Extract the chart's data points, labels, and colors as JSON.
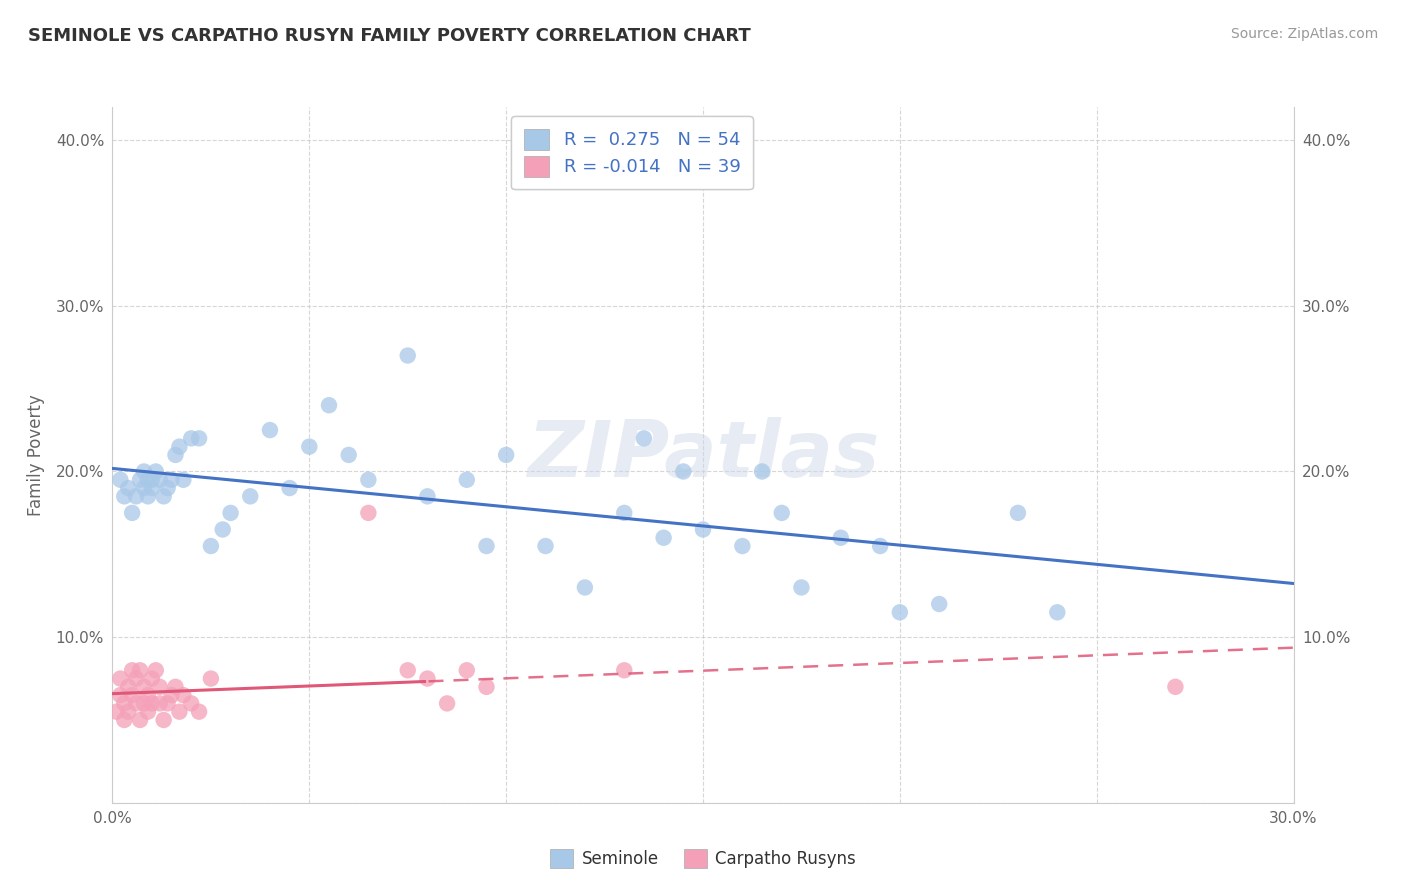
{
  "title": "SEMINOLE VS CARPATHO RUSYN FAMILY POVERTY CORRELATION CHART",
  "source_text": "Source: ZipAtlas.com",
  "ylabel_text": "Family Poverty",
  "x_min": 0.0,
  "x_max": 0.3,
  "y_min": 0.0,
  "y_max": 0.42,
  "seminole_R": 0.275,
  "seminole_N": 54,
  "carpatho_R": -0.014,
  "carpatho_N": 39,
  "seminole_color": "#a8c8e8",
  "seminole_line_color": "#4472c4",
  "carpatho_color": "#f4a0b8",
  "carpatho_line_color": "#e05878",
  "background_color": "#ffffff",
  "grid_color": "#cccccc",
  "watermark_text": "ZIPatlas",
  "legend_seminole": "Seminole",
  "legend_carpatho": "Carpatho Rusyns",
  "seminole_x": [
    0.002,
    0.003,
    0.004,
    0.005,
    0.006,
    0.007,
    0.008,
    0.008,
    0.009,
    0.009,
    0.01,
    0.01,
    0.011,
    0.012,
    0.013,
    0.014,
    0.015,
    0.016,
    0.017,
    0.018,
    0.02,
    0.022,
    0.025,
    0.028,
    0.03,
    0.035,
    0.04,
    0.045,
    0.05,
    0.055,
    0.06,
    0.065,
    0.075,
    0.08,
    0.09,
    0.095,
    0.1,
    0.11,
    0.12,
    0.13,
    0.135,
    0.14,
    0.145,
    0.15,
    0.16,
    0.165,
    0.17,
    0.175,
    0.185,
    0.195,
    0.2,
    0.21,
    0.23,
    0.24
  ],
  "seminole_y": [
    0.195,
    0.185,
    0.19,
    0.175,
    0.185,
    0.195,
    0.2,
    0.19,
    0.195,
    0.185,
    0.19,
    0.195,
    0.2,
    0.195,
    0.185,
    0.19,
    0.195,
    0.21,
    0.215,
    0.195,
    0.22,
    0.22,
    0.155,
    0.165,
    0.175,
    0.185,
    0.225,
    0.19,
    0.215,
    0.24,
    0.21,
    0.195,
    0.27,
    0.185,
    0.195,
    0.155,
    0.21,
    0.155,
    0.13,
    0.175,
    0.22,
    0.16,
    0.2,
    0.165,
    0.155,
    0.2,
    0.175,
    0.13,
    0.16,
    0.155,
    0.115,
    0.12,
    0.175,
    0.115
  ],
  "carpatho_x": [
    0.001,
    0.002,
    0.002,
    0.003,
    0.003,
    0.004,
    0.004,
    0.005,
    0.005,
    0.006,
    0.006,
    0.007,
    0.007,
    0.008,
    0.008,
    0.009,
    0.009,
    0.01,
    0.01,
    0.011,
    0.012,
    0.012,
    0.013,
    0.014,
    0.015,
    0.016,
    0.017,
    0.018,
    0.02,
    0.022,
    0.025,
    0.065,
    0.075,
    0.08,
    0.085,
    0.09,
    0.095,
    0.13,
    0.27
  ],
  "carpatho_y": [
    0.055,
    0.065,
    0.075,
    0.05,
    0.06,
    0.055,
    0.07,
    0.065,
    0.08,
    0.06,
    0.075,
    0.05,
    0.08,
    0.06,
    0.07,
    0.055,
    0.065,
    0.06,
    0.075,
    0.08,
    0.07,
    0.06,
    0.05,
    0.06,
    0.065,
    0.07,
    0.055,
    0.065,
    0.06,
    0.055,
    0.075,
    0.175,
    0.08,
    0.075,
    0.06,
    0.08,
    0.07,
    0.08,
    0.07
  ]
}
